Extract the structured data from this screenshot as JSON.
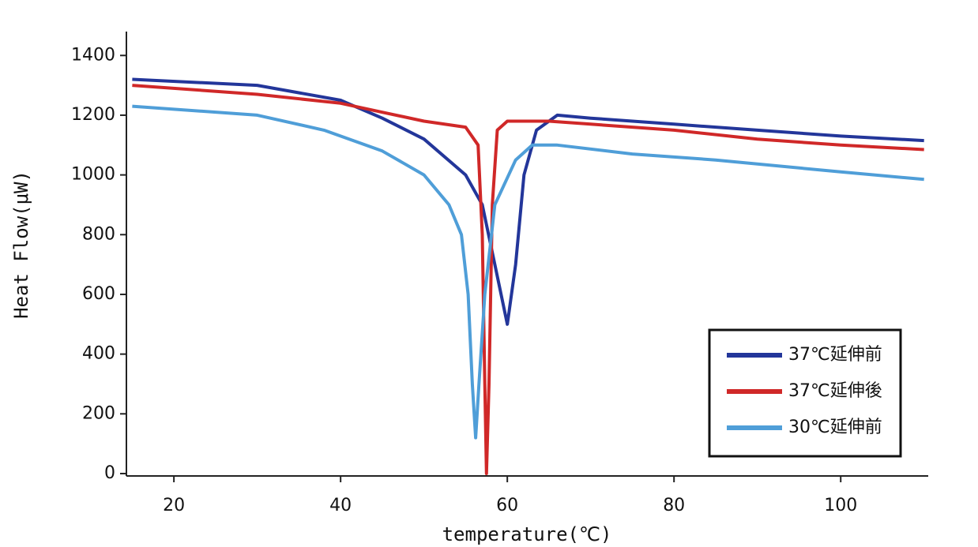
{
  "chart_data": {
    "type": "line",
    "xlabel": "temperature(℃)",
    "ylabel": "Heat Flow(μW)",
    "xlim": [
      14.3,
      110.5
    ],
    "ylim": [
      -8,
      1480
    ],
    "xticks": [
      20,
      40,
      60,
      80,
      100
    ],
    "yticks": [
      0,
      200,
      400,
      600,
      800,
      1000,
      1200,
      1400
    ],
    "legend": "lower right",
    "series": [
      {
        "name": "37℃延伸前",
        "color": "#23369a",
        "x": [
          15,
          30,
          40,
          45,
          50,
          55,
          57,
          58.5,
          60,
          61,
          62,
          63.5,
          66,
          70,
          80,
          90,
          100,
          110
        ],
        "values": [
          1320,
          1300,
          1250,
          1190,
          1120,
          1000,
          900,
          700,
          500,
          700,
          1000,
          1150,
          1200,
          1190,
          1170,
          1150,
          1130,
          1115
        ]
      },
      {
        "name": "37℃延伸後",
        "color": "#d02828",
        "x": [
          15,
          30,
          40,
          45,
          50,
          55,
          56.5,
          57,
          57.3,
          57.5,
          57.8,
          58.2,
          58.8,
          60,
          65,
          70,
          80,
          90,
          100,
          110
        ],
        "values": [
          1300,
          1270,
          1240,
          1210,
          1180,
          1160,
          1100,
          800,
          300,
          0,
          300,
          900,
          1150,
          1180,
          1180,
          1170,
          1150,
          1120,
          1100,
          1085
        ]
      },
      {
        "name": "30℃延伸前",
        "color": "#4f9ed8",
        "x": [
          15,
          30,
          38,
          45,
          50,
          53,
          54.5,
          55.3,
          55.8,
          56.2,
          56.6,
          57.3,
          58.5,
          61,
          63,
          66,
          75,
          85,
          100,
          110
        ],
        "values": [
          1230,
          1200,
          1150,
          1080,
          1000,
          900,
          800,
          600,
          300,
          120,
          300,
          600,
          900,
          1050,
          1100,
          1100,
          1070,
          1050,
          1010,
          985
        ]
      }
    ]
  }
}
